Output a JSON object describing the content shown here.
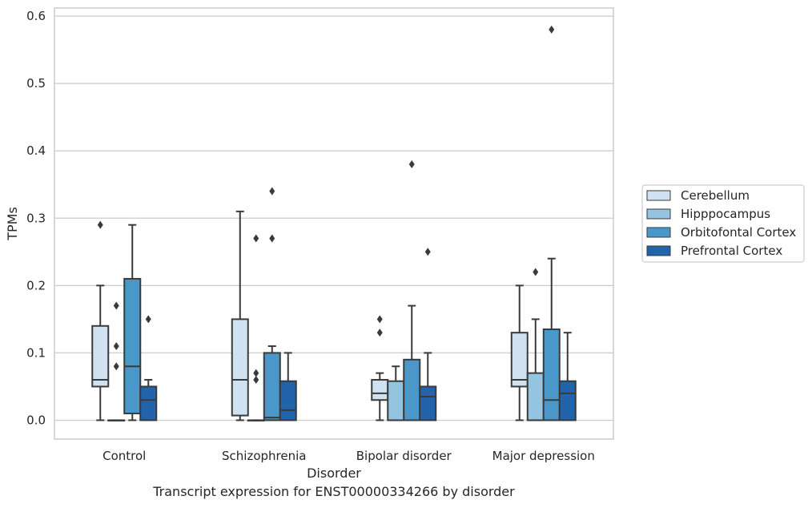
{
  "caption": "Transcript expression for ENST00000334266 by disorder",
  "chart_data": {
    "type": "box",
    "xlabel": "Disorder",
    "ylabel": "TPMs",
    "ylim": [
      -0.028,
      0.612
    ],
    "yticks": [
      0.0,
      0.1,
      0.2,
      0.3,
      0.4,
      0.5,
      0.6
    ],
    "ytick_labels": [
      "0.0",
      "0.1",
      "0.2",
      "0.3",
      "0.4",
      "0.5",
      "0.6"
    ],
    "grid": "horizontal",
    "legend_position": "right",
    "categories": [
      "Control",
      "Schizophrenia",
      "Bipolar disorder",
      "Major depression"
    ],
    "series": [
      {
        "name": "Cerebellum",
        "color": "#d0e1f2",
        "boxes": [
          {
            "whislo": 0.0,
            "q1": 0.05,
            "med": 0.06,
            "q3": 0.14,
            "whishi": 0.2,
            "fliers": [
              0.29
            ]
          },
          {
            "whislo": 0.0,
            "q1": 0.007,
            "med": 0.06,
            "q3": 0.15,
            "whishi": 0.31,
            "fliers": []
          },
          {
            "whislo": 0.0,
            "q1": 0.03,
            "med": 0.04,
            "q3": 0.06,
            "whishi": 0.07,
            "fliers": [
              0.13,
              0.15
            ]
          },
          {
            "whislo": 0.0,
            "q1": 0.05,
            "med": 0.06,
            "q3": 0.13,
            "whishi": 0.2,
            "fliers": []
          }
        ]
      },
      {
        "name": "Hipppocampus",
        "color": "#94c4df",
        "boxes": [
          {
            "whislo": 0.0,
            "q1": 0.0,
            "med": 0.0,
            "q3": 0.0,
            "whishi": 0.0,
            "fliers": [
              0.08,
              0.11,
              0.17
            ]
          },
          {
            "whislo": 0.0,
            "q1": 0.0,
            "med": 0.0,
            "q3": 0.0,
            "whishi": 0.0,
            "fliers": [
              0.06,
              0.07,
              0.27
            ]
          },
          {
            "whislo": 0.0,
            "q1": 0.0,
            "med": 0.0,
            "q3": 0.058,
            "whishi": 0.08,
            "fliers": []
          },
          {
            "whislo": 0.0,
            "q1": 0.0,
            "med": 0.0,
            "q3": 0.07,
            "whishi": 0.15,
            "fliers": [
              0.22
            ]
          }
        ]
      },
      {
        "name": "Orbitofontal Cortex",
        "color": "#4a98c9",
        "boxes": [
          {
            "whislo": 0.0,
            "q1": 0.01,
            "med": 0.08,
            "q3": 0.21,
            "whishi": 0.29,
            "fliers": []
          },
          {
            "whislo": 0.0,
            "q1": 0.0,
            "med": 0.004,
            "q3": 0.1,
            "whishi": 0.11,
            "fliers": [
              0.27,
              0.34
            ]
          },
          {
            "whislo": 0.0,
            "q1": 0.0,
            "med": 0.0,
            "q3": 0.09,
            "whishi": 0.17,
            "fliers": [
              0.38
            ]
          },
          {
            "whislo": 0.0,
            "q1": 0.0,
            "med": 0.03,
            "q3": 0.135,
            "whishi": 0.24,
            "fliers": [
              0.58
            ]
          }
        ]
      },
      {
        "name": "Prefrontal Cortex",
        "color": "#2164ab",
        "boxes": [
          {
            "whislo": 0.0,
            "q1": 0.0,
            "med": 0.03,
            "q3": 0.05,
            "whishi": 0.06,
            "fliers": [
              0.15
            ]
          },
          {
            "whislo": 0.0,
            "q1": 0.0,
            "med": 0.015,
            "q3": 0.058,
            "whishi": 0.1,
            "fliers": []
          },
          {
            "whislo": 0.0,
            "q1": 0.0,
            "med": 0.035,
            "q3": 0.05,
            "whishi": 0.1,
            "fliers": [
              0.25
            ]
          },
          {
            "whislo": 0.0,
            "q1": 0.0,
            "med": 0.04,
            "q3": 0.058,
            "whishi": 0.13,
            "fliers": []
          }
        ]
      }
    ]
  }
}
